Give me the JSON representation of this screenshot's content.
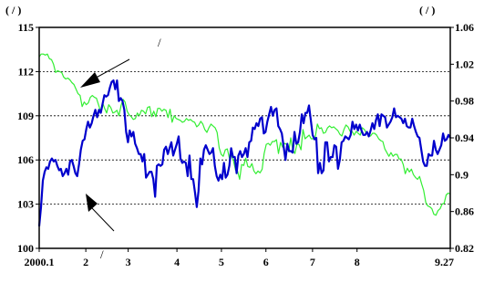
{
  "chart_data": {
    "type": "line",
    "title": "",
    "left_axis": {
      "unit": "(  /  )",
      "range": [
        100,
        115
      ],
      "ticks": [
        100,
        103,
        106,
        109,
        112,
        115
      ],
      "tick_labels": [
        "100",
        "103",
        "106",
        "109",
        "112",
        "115"
      ],
      "gridlines": [
        103,
        106,
        109,
        112
      ]
    },
    "right_axis": {
      "unit": "(  /  )",
      "range": [
        0.82,
        1.06
      ],
      "ticks": [
        0.82,
        0.86,
        0.9,
        0.94,
        0.98,
        1.02,
        1.06
      ],
      "tick_labels": [
        "0.82",
        "0.86",
        "0.9",
        "0.94",
        "0.98",
        "1.02",
        "1.06"
      ]
    },
    "x_axis": {
      "range": [
        0,
        194
      ],
      "ticks": [
        {
          "x": 0,
          "label": "2000.1"
        },
        {
          "x": 22,
          "label": "2"
        },
        {
          "x": 42,
          "label": "3"
        },
        {
          "x": 65,
          "label": "4"
        },
        {
          "x": 86,
          "label": "5"
        },
        {
          "x": 107,
          "label": "6"
        },
        {
          "x": 129,
          "label": "7"
        },
        {
          "x": 150,
          "label": "8"
        },
        {
          "x": 194,
          "label": "9.27"
        }
      ]
    },
    "annotations": [
      {
        "text": "/",
        "series": "green"
      },
      {
        "text": "/",
        "series": "blue"
      }
    ],
    "series": [
      {
        "color": "#0000cc",
        "axis": "left",
        "values": [
          101.5,
          102.8,
          104.6,
          105.2,
          105.5,
          105.4,
          105.9,
          106.1,
          105.9,
          106.0,
          105.6,
          105.3,
          105.4,
          104.9,
          105.1,
          105.4,
          105.0,
          105.9,
          106.0,
          105.6,
          105.1,
          104.9,
          105.7,
          106.7,
          107.3,
          107.4,
          108.1,
          108.6,
          108.2,
          108.5,
          109.0,
          109.4,
          108.9,
          109.4,
          109.2,
          109.8,
          110.4,
          110.3,
          110.4,
          110.9,
          111.3,
          111.4,
          110.8,
          111.4,
          110.0,
          110.2,
          110.0,
          109.4,
          107.9,
          107.2,
          108.0,
          107.6,
          107.9,
          107.1,
          106.8,
          106.4,
          106.4,
          105.9,
          106.4,
          104.8,
          105.0,
          105.2,
          105.2,
          104.7,
          103.5,
          105.6,
          105.7,
          105.6,
          105.7,
          106.7,
          106.9,
          106.4,
          106.8,
          107.2,
          106.3,
          106.7,
          107.1,
          107.6,
          106.1,
          105.8,
          105.9,
          105.8,
          104.9,
          106.3,
          104.7,
          104.7,
          103.8,
          102.8,
          103.9,
          106.1,
          105.7,
          106.7,
          107.0,
          106.7,
          106.4,
          106.5,
          106.8,
          105.6,
          104.9,
          104.6,
          105.0,
          104.7,
          105.8,
          104.8,
          105.0,
          105.6,
          106.8,
          106.2,
          106.2,
          105.1,
          106.3,
          106.6,
          106.2,
          106.4,
          106.8,
          106.2,
          107.2,
          107.3,
          108.2,
          108.1,
          108.5,
          108.3,
          108.8,
          108.9,
          107.8,
          107.9,
          108.6,
          109.1,
          109.6,
          109.0,
          109.4,
          109.5,
          108.3,
          108.1,
          107.8,
          106.9,
          106.0,
          107.1,
          106.6,
          106.6,
          106.5,
          107.9,
          107.1,
          107.2,
          107.9,
          109.1,
          108.5,
          109.2,
          109.2,
          109.7,
          108.7,
          107.7,
          107.4,
          107.5,
          105.1,
          105.8,
          105.1,
          105.3,
          107.2,
          107.2,
          105.9,
          106.2,
          106.2,
          107.0,
          106.9,
          105.4,
          106.0,
          107.2,
          107.3,
          107.6,
          107.5,
          107.4,
          107.7,
          108.6,
          108.1,
          108.4,
          108.0,
          108.4,
          108.0,
          107.7,
          107.7,
          107.9,
          107.6,
          108.0,
          108.5,
          108.1,
          108.7,
          109.1,
          108.3,
          109.1,
          109.0,
          108.9,
          108.2,
          108.4,
          108.6,
          108.9,
          109.5,
          108.9,
          109.0,
          108.9,
          108.8,
          108.5,
          108.8,
          108.3,
          108.2,
          108.2,
          108.8,
          108.3,
          107.9,
          107.6,
          107.5,
          106.7,
          105.9,
          105.6,
          105.6,
          106.4,
          106.3,
          106.3,
          107.3,
          106.7,
          106.4,
          106.7,
          107.0,
          107.8,
          107.3,
          107.4,
          107.7,
          107.5
        ]
      },
      {
        "color": "#33ee33",
        "axis": "right",
        "values": [
          1.028,
          1.031,
          1.031,
          1.03,
          1.031,
          1.026,
          1.025,
          1.02,
          1.011,
          1.013,
          1.012,
          1.011,
          1.006,
          1.004,
          1.005,
          1.003,
          1.0,
          0.998,
          0.993,
          0.988,
          0.986,
          0.974,
          0.979,
          0.976,
          0.978,
          0.984,
          0.986,
          0.984,
          0.983,
          0.976,
          0.969,
          0.978,
          0.972,
          0.967,
          0.976,
          0.973,
          0.967,
          0.968,
          0.97,
          0.964,
          0.975,
          0.982,
          0.979,
          0.969,
          0.965,
          0.963,
          0.96,
          0.961,
          0.967,
          0.964,
          0.97,
          0.969,
          0.966,
          0.973,
          0.974,
          0.963,
          0.969,
          0.963,
          0.972,
          0.972,
          0.969,
          0.971,
          0.97,
          0.962,
          0.971,
          0.957,
          0.964,
          0.961,
          0.96,
          0.959,
          0.957,
          0.958,
          0.961,
          0.959,
          0.96,
          0.958,
          0.957,
          0.952,
          0.954,
          0.958,
          0.955,
          0.949,
          0.946,
          0.951,
          0.955,
          0.953,
          0.951,
          0.946,
          0.929,
          0.922,
          0.92,
          0.927,
          0.928,
          0.918,
          0.921,
          0.915,
          0.905,
          0.904,
          0.895,
          0.911,
          0.91,
          0.918,
          0.909,
          0.908,
          0.912,
          0.904,
          0.901,
          0.904,
          0.902,
          0.906,
          0.923,
          0.933,
          0.934,
          0.932,
          0.936,
          0.936,
          0.938,
          0.923,
          0.935,
          0.93,
          0.934,
          0.933,
          0.925,
          0.94,
          0.927,
          0.923,
          0.933,
          0.933,
          0.927,
          0.949,
          0.939,
          0.941,
          0.943,
          0.939,
          0.939,
          0.941,
          0.955,
          0.95,
          0.951,
          0.945,
          0.946,
          0.951,
          0.953,
          0.951,
          0.952,
          0.95,
          0.948,
          0.944,
          0.942,
          0.949,
          0.954,
          0.952,
          0.947,
          0.947,
          0.943,
          0.947,
          0.945,
          0.943,
          0.951,
          0.949,
          0.945,
          0.943,
          0.942,
          0.945,
          0.945,
          0.943,
          0.939,
          0.937,
          0.936,
          0.928,
          0.924,
          0.92,
          0.924,
          0.92,
          0.922,
          0.922,
          0.917,
          0.917,
          0.911,
          0.901,
          0.907,
          0.903,
          0.906,
          0.9,
          0.897,
          0.895,
          0.898,
          0.89,
          0.883,
          0.87,
          0.866,
          0.865,
          0.863,
          0.857,
          0.856,
          0.861,
          0.863,
          0.868,
          0.869,
          0.878,
          0.88,
          0.879
        ]
      }
    ]
  }
}
